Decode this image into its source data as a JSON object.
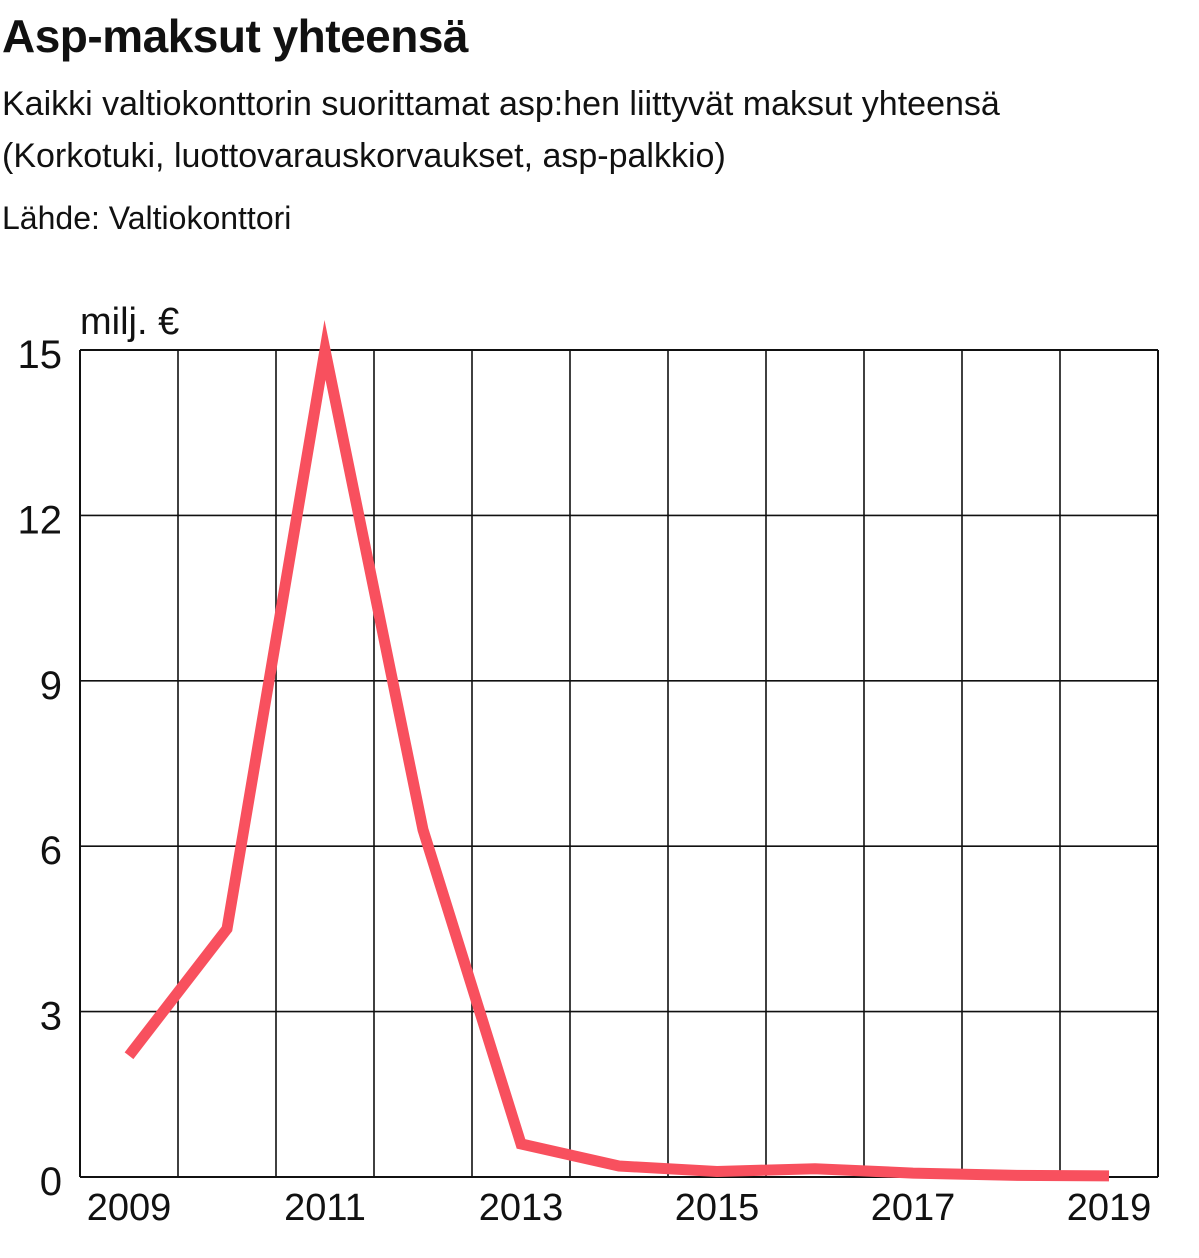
{
  "header": {
    "title": "Asp-maksut yhteensä",
    "subtitle_line1": "Kaikki valtiokonttorin suorittamat asp:hen liittyvät maksut yhteensä",
    "subtitle_line2": "(Korkotuki, luottovarauskorvaukset, asp-palkkio)",
    "source": "Lähde: Valtiokonttori"
  },
  "chart_data": {
    "type": "line",
    "title": "Asp-maksut yhteensä",
    "ylabel": "milj. €",
    "xlabel": "",
    "x": [
      2009,
      2010,
      2011,
      2012,
      2013,
      2014,
      2015,
      2016,
      2017,
      2018,
      2019
    ],
    "series": [
      {
        "values": [
          2.2,
          4.5,
          15.0,
          6.3,
          0.6,
          0.2,
          0.1,
          0.15,
          0.07,
          0.03,
          0.02
        ]
      }
    ],
    "xlim": [
      2008.5,
      2019.5
    ],
    "ylim": [
      0,
      15
    ],
    "yticks": [
      0,
      3,
      6,
      9,
      12,
      15
    ],
    "xtick_labels": [
      "2009",
      "2011",
      "2013",
      "2015",
      "2017",
      "2019"
    ],
    "grid": true,
    "line_color": "#f8505e",
    "grid_color": "#111111"
  }
}
